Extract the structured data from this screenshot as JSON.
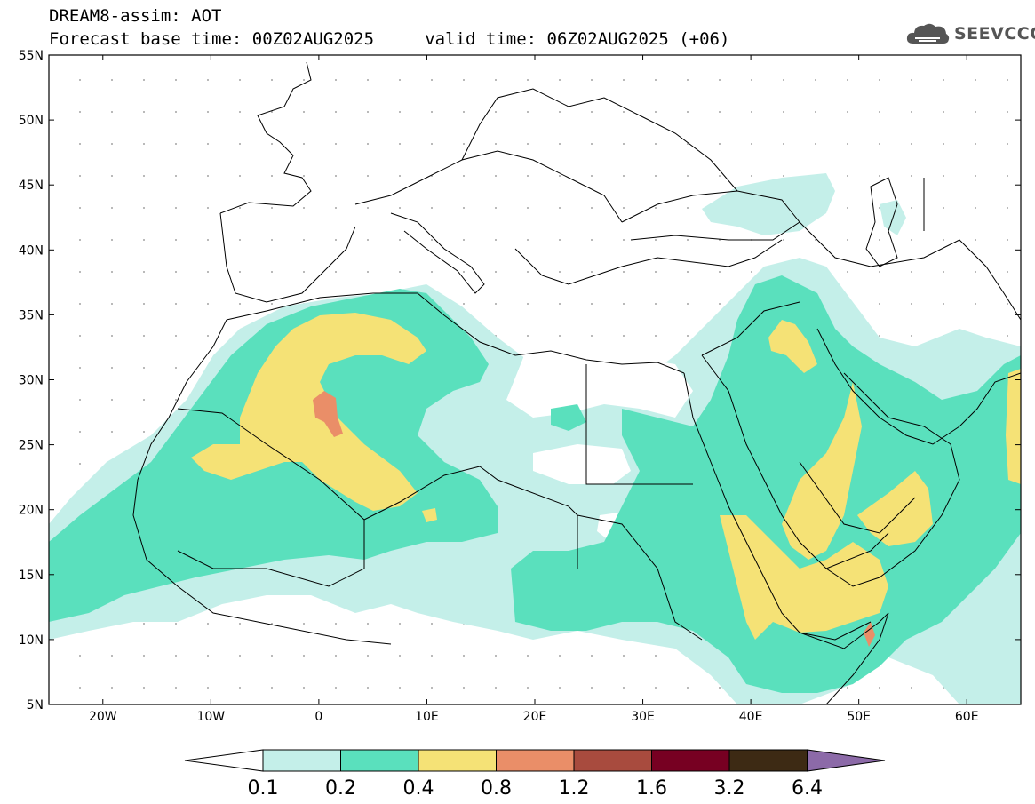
{
  "title": {
    "line1": "DREAM8-assim: AOT",
    "line2": "Forecast base time: 00Z02AUG2025     valid time: 06Z02AUG2025 (+06)"
  },
  "logo": {
    "text": "SEEVCCC",
    "icon": "cloud-logo-icon"
  },
  "map": {
    "lon_range": [
      -25,
      65
    ],
    "lat_range": [
      5,
      55
    ],
    "lat_ticks": [
      "55N",
      "50N",
      "45N",
      "40N",
      "35N",
      "30N",
      "25N",
      "20N",
      "15N",
      "10N",
      "5N"
    ],
    "lon_ticks": [
      "20W",
      "10W",
      "0",
      "10E",
      "20E",
      "30E",
      "40E",
      "50E",
      "60E"
    ]
  },
  "colorbar": {
    "labels": [
      "0.1",
      "0.2",
      "0.4",
      "0.8",
      "1.2",
      "1.6",
      "3.2",
      "6.4"
    ],
    "colors": [
      "#ffffff",
      "#c4efe9",
      "#5ae0bd",
      "#f5e276",
      "#ea8e68",
      "#a84b3e",
      "#770022",
      "#3d2a14",
      "#8c6aa8"
    ]
  }
}
